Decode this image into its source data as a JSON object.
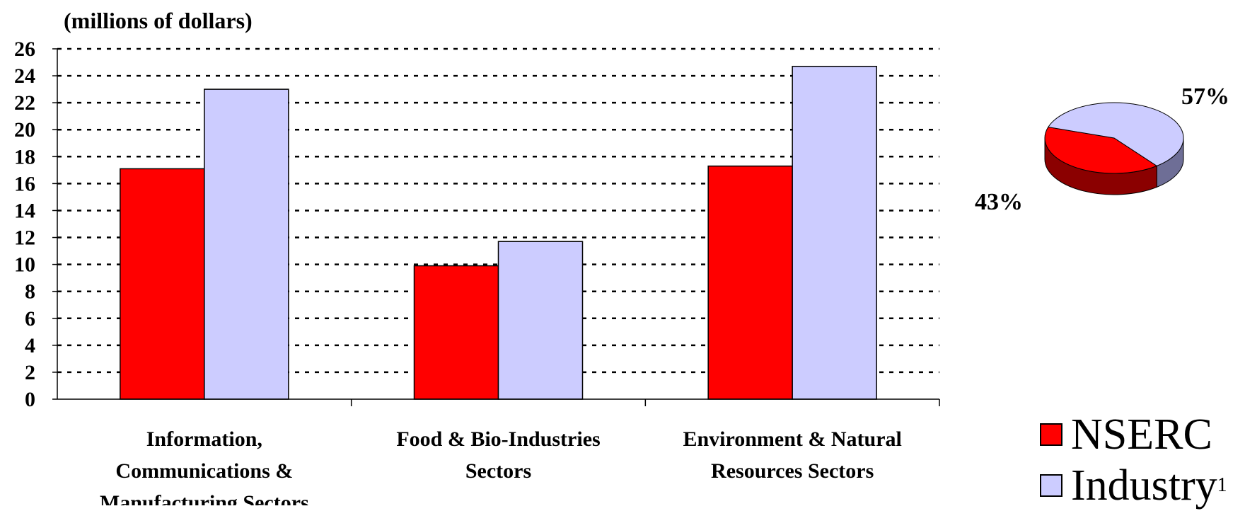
{
  "chart_data": {
    "type": "bar",
    "unit_label": "(millions of dollars)",
    "categories": [
      [
        "Information,",
        "Communications &",
        "Manufacturing Sectors"
      ],
      [
        "Food & Bio-Industries",
        "Sectors"
      ],
      [
        "Environment & Natural",
        "Resources Sectors"
      ]
    ],
    "series": [
      {
        "name": "NSERC",
        "values": [
          17.1,
          9.9,
          17.3
        ],
        "color": "#ff0000"
      },
      {
        "name": "Industry",
        "values": [
          23.0,
          11.7,
          24.7
        ],
        "color": "#ccccff"
      }
    ],
    "yticks": [
      "0",
      "2",
      "4",
      "6",
      "8",
      "10",
      "12",
      "14",
      "16",
      "18",
      "20",
      "22",
      "24",
      "26"
    ],
    "ylim": [
      0,
      26
    ],
    "grid": "dotted horizontal",
    "pie": {
      "slices": [
        {
          "name": "NSERC",
          "label": "43%",
          "value": 43,
          "color": "#ff0000",
          "side": "#8b0000"
        },
        {
          "name": "Industry",
          "label": "57%",
          "value": 57,
          "color": "#ccccff",
          "side": "#6e6e96"
        }
      ]
    },
    "legend": {
      "placement": "bottom-right",
      "items": [
        {
          "label": "NSERC",
          "sup": "",
          "color": "#ff0000"
        },
        {
          "label": "Industry",
          "sup": "1",
          "color": "#ccccff"
        }
      ]
    }
  }
}
